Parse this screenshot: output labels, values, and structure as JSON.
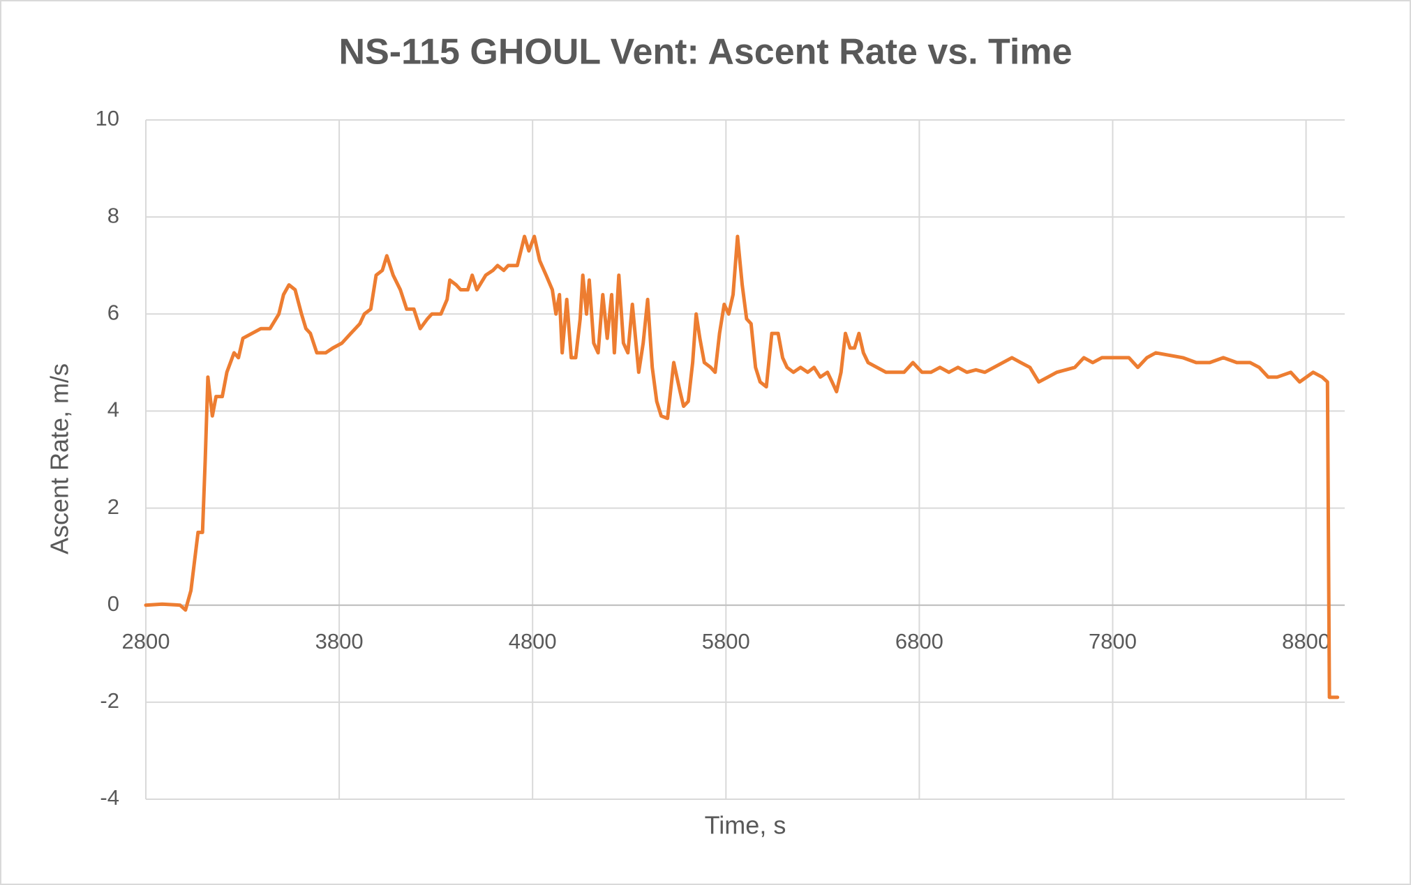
{
  "chart_data": {
    "type": "line",
    "title": "NS-115 GHOUL Vent: Ascent Rate vs. Time",
    "x_label": "Time, s",
    "y_label": "Ascent Rate, m/s",
    "xlim": [
      2800,
      9000
    ],
    "xticks": [
      2800,
      3800,
      4800,
      5800,
      6800,
      7800,
      8800
    ],
    "ylim": [
      -4,
      10
    ],
    "yticks": [
      -4,
      -2,
      0,
      2,
      4,
      6,
      8,
      10
    ],
    "grid": true,
    "series": [
      {
        "name": "Ascent Rate",
        "color": "#ed7d31",
        "x": [
          2800,
          2884,
          2977,
          3005,
          3033,
          3070,
          3093,
          3107,
          3121,
          3144,
          3163,
          3195,
          3219,
          3256,
          3279,
          3302,
          3349,
          3395,
          3442,
          3488,
          3512,
          3540,
          3572,
          3605,
          3628,
          3651,
          3684,
          3730,
          3767,
          3814,
          3860,
          3907,
          3930,
          3963,
          3991,
          4023,
          4046,
          4079,
          4116,
          4149,
          4186,
          4219,
          4256,
          4279,
          4326,
          4358,
          4372,
          4405,
          4428,
          4465,
          4488,
          4512,
          4558,
          4595,
          4619,
          4651,
          4674,
          4721,
          4758,
          4781,
          4809,
          4837,
          4870,
          4902,
          4921,
          4939,
          4953,
          4977,
          5000,
          5023,
          5046,
          5060,
          5079,
          5093,
          5116,
          5139,
          5163,
          5186,
          5209,
          5223,
          5246,
          5270,
          5293,
          5316,
          5349,
          5372,
          5395,
          5419,
          5442,
          5465,
          5498,
          5530,
          5563,
          5581,
          5605,
          5628,
          5646,
          5665,
          5688,
          5721,
          5744,
          5767,
          5791,
          5814,
          5837,
          5860,
          5884,
          5907,
          5930,
          5953,
          5977,
          6009,
          6037,
          6070,
          6093,
          6116,
          6149,
          6186,
          6223,
          6256,
          6288,
          6325,
          6349,
          6372,
          6395,
          6418,
          6442,
          6465,
          6488,
          6511,
          6535,
          6581,
          6628,
          6674,
          6721,
          6767,
          6814,
          6860,
          6907,
          6953,
          7000,
          7046,
          7093,
          7139,
          7186,
          7232,
          7279,
          7325,
          7372,
          7418,
          7465,
          7511,
          7558,
          7604,
          7651,
          7697,
          7744,
          7814,
          7884,
          7930,
          7977,
          8023,
          8093,
          8163,
          8232,
          8302,
          8372,
          8442,
          8511,
          8558,
          8604,
          8651,
          8721,
          8767,
          8837,
          8883,
          8911,
          8921,
          8963
        ],
        "values": [
          0,
          0.02,
          0,
          -0.1,
          0.3,
          1.5,
          1.5,
          3,
          4.7,
          3.9,
          4.3,
          4.3,
          4.8,
          5.2,
          5.1,
          5.5,
          5.6,
          5.7,
          5.7,
          6.0,
          6.4,
          6.6,
          6.5,
          6.0,
          5.7,
          5.6,
          5.2,
          5.2,
          5.3,
          5.4,
          5.6,
          5.8,
          6.0,
          6.1,
          6.8,
          6.9,
          7.2,
          6.8,
          6.5,
          6.1,
          6.1,
          5.7,
          5.9,
          6.0,
          6.0,
          6.3,
          6.7,
          6.6,
          6.5,
          6.5,
          6.8,
          6.5,
          6.8,
          6.9,
          7.0,
          6.9,
          7.0,
          7.0,
          7.6,
          7.3,
          7.6,
          7.1,
          6.8,
          6.5,
          6.0,
          6.4,
          5.2,
          6.3,
          5.1,
          5.1,
          5.9,
          6.8,
          6.0,
          6.7,
          5.4,
          5.2,
          6.4,
          5.5,
          6.4,
          5.2,
          6.8,
          5.4,
          5.2,
          6.2,
          4.8,
          5.4,
          6.3,
          4.9,
          4.2,
          3.9,
          3.85,
          5.0,
          4.4,
          4.1,
          4.2,
          5.0,
          6.0,
          5.5,
          5.0,
          4.9,
          4.8,
          5.6,
          6.2,
          6.0,
          6.4,
          7.6,
          6.6,
          5.9,
          5.8,
          4.9,
          4.6,
          4.5,
          5.6,
          5.6,
          5.1,
          4.9,
          4.8,
          4.9,
          4.8,
          4.9,
          4.7,
          4.8,
          4.6,
          4.4,
          4.8,
          5.6,
          5.3,
          5.3,
          5.6,
          5.2,
          5.0,
          4.9,
          4.8,
          4.8,
          4.8,
          5.0,
          4.8,
          4.8,
          4.9,
          4.8,
          4.9,
          4.8,
          4.85,
          4.8,
          4.9,
          5.0,
          5.1,
          5.0,
          4.9,
          4.6,
          4.7,
          4.8,
          4.85,
          4.9,
          5.1,
          5.0,
          5.1,
          5.1,
          5.1,
          4.9,
          5.1,
          5.2,
          5.15,
          5.1,
          5.0,
          5.0,
          5.1,
          5.0,
          5.0,
          4.9,
          4.7,
          4.7,
          4.8,
          4.6,
          4.8,
          4.7,
          4.6,
          -1.9,
          -1.9
        ]
      }
    ]
  }
}
